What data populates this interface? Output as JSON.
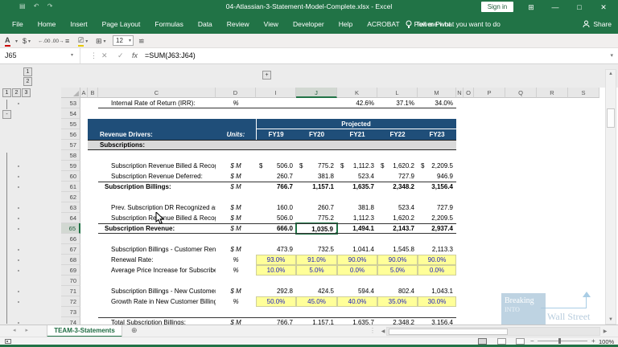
{
  "titlebar": {
    "title": "04-Atlassian-3-Statement-Model-Complete.xlsx  -  Excel",
    "sign_in": "Sign in"
  },
  "ribbon": {
    "tabs": [
      "File",
      "Home",
      "Insert",
      "Page Layout",
      "Formulas",
      "Data",
      "Review",
      "View",
      "Developer",
      "Help",
      "ACROBAT",
      "Power Pivot"
    ],
    "tell_me": "Tell me what you want to do",
    "share": "Share"
  },
  "qat": {
    "font_size": "12"
  },
  "formula_bar": {
    "name_box": "J65",
    "fx": "fx",
    "formula": "=SUM(J63:J64)"
  },
  "grid": {
    "column_headers": [
      "A",
      "B",
      "C",
      "D",
      "I",
      "J",
      "K",
      "L",
      "M",
      "N",
      "O",
      "P",
      "Q",
      "R",
      "S"
    ],
    "selected_column": "J",
    "selected_row": "65",
    "outline": {
      "row_levels": [
        "1",
        "2",
        "3"
      ],
      "col_levels": [
        "1",
        "2"
      ],
      "expand": "+",
      "collapse": "-"
    },
    "table_header": {
      "projected": "Projected",
      "revenue_drivers": "Revenue Drivers:",
      "units": "Units:",
      "years": [
        "FY19",
        "FY20",
        "FY21",
        "FY22",
        "FY23"
      ]
    },
    "rows": [
      {
        "num": "53",
        "type": "data",
        "indent": true,
        "label": "Internal Rate of Return (IRR):",
        "units": "%",
        "values": [
          "",
          "",
          "42.6%",
          "37.1%",
          "34.0%"
        ],
        "bottom_border": true
      },
      {
        "num": "54",
        "type": "blank"
      },
      {
        "num": "55",
        "type": "projected"
      },
      {
        "num": "56",
        "type": "years"
      },
      {
        "num": "57",
        "type": "section",
        "label": "Subscriptions:"
      },
      {
        "num": "58",
        "type": "blank"
      },
      {
        "num": "59",
        "type": "data",
        "indent": true,
        "label": "Subscription Revenue Billed & Recognized:",
        "units": "$ M",
        "dollar": true,
        "values": [
          "506.0",
          "775.2",
          "1,112.3",
          "1,620.2",
          "2,209.5"
        ]
      },
      {
        "num": "60",
        "type": "data",
        "indent": true,
        "label": "Subscription Revenue Deferred:",
        "units": "$ M",
        "values": [
          "260.7",
          "381.8",
          "523.4",
          "727.9",
          "946.9"
        ]
      },
      {
        "num": "61",
        "type": "data",
        "bold": true,
        "label": "Subscription Billings:",
        "units": "$ M",
        "values": [
          "766.7",
          "1,157.1",
          "1,635.7",
          "2,348.2",
          "3,156.4"
        ],
        "top_border": true
      },
      {
        "num": "62",
        "type": "blank"
      },
      {
        "num": "63",
        "type": "data",
        "indent": true,
        "label": "Prev. Subscription DR Recognized as Revenue:",
        "units": "$ M",
        "values": [
          "160.0",
          "260.7",
          "381.8",
          "523.4",
          "727.9"
        ]
      },
      {
        "num": "64",
        "type": "data",
        "indent": true,
        "label": "Subscription Revenue Billed & Recognized:",
        "units": "$ M",
        "values": [
          "506.0",
          "775.2",
          "1,112.3",
          "1,620.2",
          "2,209.5"
        ]
      },
      {
        "num": "65",
        "type": "data",
        "bold": true,
        "label": "Subscription Revenue:",
        "units": "$ M",
        "values": [
          "666.0",
          "1,035.9",
          "1,494.1",
          "2,143.7",
          "2,937.4"
        ],
        "top_border": true,
        "bottom_border": true,
        "selected_value_index": 1
      },
      {
        "num": "66",
        "type": "blank"
      },
      {
        "num": "67",
        "type": "data",
        "indent": true,
        "label": "Subscription Billings - Customer Renewals:",
        "units": "$ M",
        "values": [
          "473.9",
          "732.5",
          "1,041.4",
          "1,545.8",
          "2,113.3"
        ]
      },
      {
        "num": "68",
        "type": "data",
        "indent": true,
        "label": "Renewal Rate:",
        "units": "%",
        "yellow": true,
        "values": [
          "93.0%",
          "91.0%",
          "90.0%",
          "90.0%",
          "90.0%"
        ]
      },
      {
        "num": "69",
        "type": "data",
        "indent": true,
        "label": "Average Price Increase for Subscribers:",
        "units": "%",
        "yellow": true,
        "values": [
          "10.0%",
          "5.0%",
          "0.0%",
          "5.0%",
          "0.0%"
        ]
      },
      {
        "num": "70",
        "type": "blank"
      },
      {
        "num": "71",
        "type": "data",
        "indent": true,
        "label": "Subscription Billings - New Customers:",
        "units": "$ M",
        "values": [
          "292.8",
          "424.5",
          "594.4",
          "802.4",
          "1,043.1"
        ]
      },
      {
        "num": "72",
        "type": "data",
        "indent": true,
        "label": "Growth Rate in New Customer Billings:",
        "units": "%",
        "yellow": true,
        "values": [
          "50.0%",
          "45.0%",
          "40.0%",
          "35.0%",
          "30.0%"
        ]
      },
      {
        "num": "73",
        "type": "blank"
      },
      {
        "num": "74",
        "type": "data",
        "indent": true,
        "label": "Total Subscription Billings:",
        "units": "$ M",
        "values": [
          "766.7",
          "1,157.1",
          "1,635.7",
          "2,348.2",
          "3,156.4"
        ],
        "top_border": true
      }
    ]
  },
  "sheet_tabs": {
    "active": "TEAM-3-Statements"
  },
  "status_bar": {
    "zoom": "100%"
  },
  "watermark": {
    "line1": "Breaking",
    "line2": "INTO",
    "line3": "Wall Street"
  },
  "colors": {
    "excel_green": "#217346",
    "header_navy": "#1f4e79",
    "input_yellow": "#ffff99",
    "input_blue_text": "#2020c0",
    "section_gray": "#d9d9d9"
  }
}
